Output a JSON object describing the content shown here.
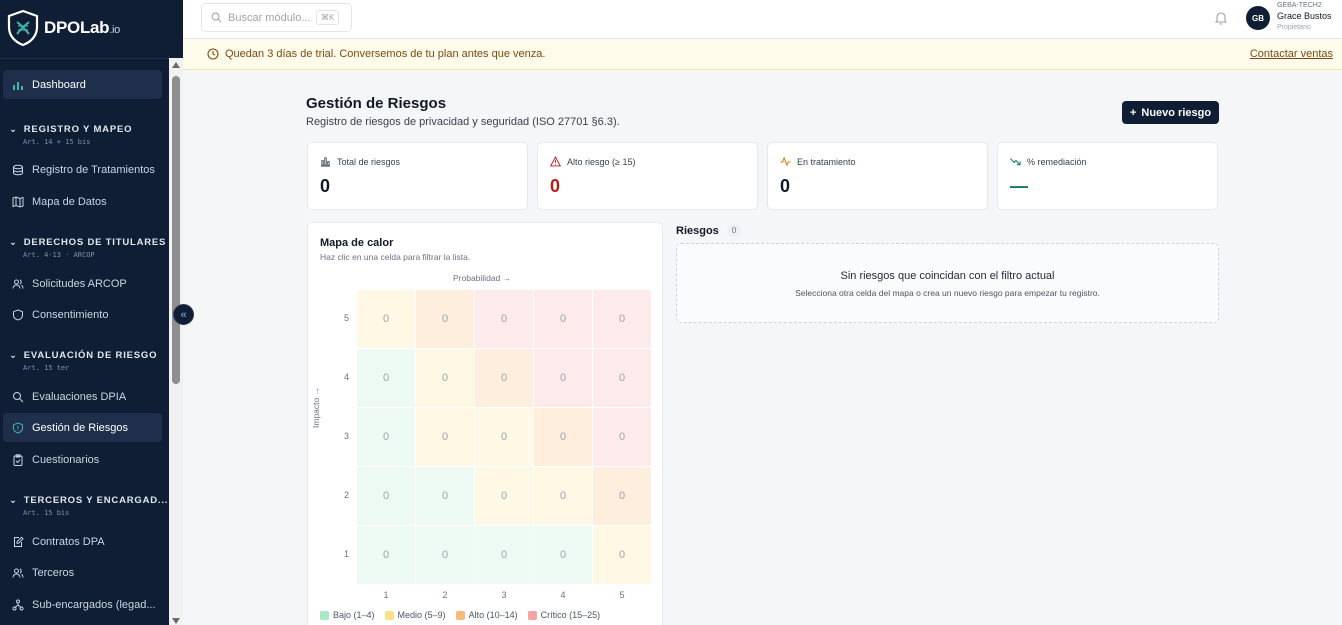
{
  "brand": {
    "name": "DPOLab",
    "suffix": ".io"
  },
  "sidebar": {
    "dashboard": "Dashboard",
    "sections": [
      {
        "title": "REGISTRO Y MAPEO",
        "sub": "Art. 14 + 15 bis",
        "items": [
          "Registro de Tratamientos",
          "Mapa de Datos"
        ]
      },
      {
        "title": "DERECHOS DE TITULARES",
        "sub": "Art. 4-13 · ARCOP",
        "items": [
          "Solicitudes ARCOP",
          "Consentimiento"
        ]
      },
      {
        "title": "EVALUACIÓN DE RIESGO",
        "sub": "Art. 15 ter",
        "items": [
          "Evaluaciones DPIA",
          "Gestión de Riesgos",
          "Cuestionarios"
        ]
      },
      {
        "title": "TERCEROS Y ENCARGAD...",
        "sub": "Art. 15 bis",
        "items": [
          "Contratos DPA",
          "Terceros",
          "Sub-encargados (legad..."
        ]
      }
    ]
  },
  "topbar": {
    "search_placeholder": "Buscar módulo...",
    "search_shortcut": "⌘K",
    "user": {
      "org": "GEBA-TECH2",
      "name": "Grace Bustos",
      "role": "Propietario",
      "initials": "GB"
    }
  },
  "banner": {
    "message": "Quedan 3 días de trial. Conversemos de tu plan antes que venza.",
    "cta": "Contactar ventas"
  },
  "page": {
    "title": "Gestión de Riesgos",
    "subtitle": "Registro de riesgos de privacidad y seguridad (ISO 27701 §6.3).",
    "new_button": "Nuevo riesgo"
  },
  "stats": [
    {
      "label": "Total de riesgos",
      "value": "0",
      "color": "#111827"
    },
    {
      "label": "Alto riesgo (≥ 15)",
      "value": "0",
      "color": "#b91c1c"
    },
    {
      "label": "En tratamiento",
      "value": "0",
      "color": "#111827"
    },
    {
      "label": "% remediación",
      "value": "—",
      "color": "#0f766e"
    }
  ],
  "heatmap": {
    "title": "Mapa de calor",
    "subtitle": "Haz clic en una celda para filtrar la lista.",
    "x_label": "Probabilidad →",
    "y_label": "Impacto →",
    "x_ticks": [
      "1",
      "2",
      "3",
      "4",
      "5"
    ],
    "y_ticks": [
      "5",
      "4",
      "3",
      "2",
      "1"
    ],
    "rows": [
      {
        "impact": "5",
        "cells": [
          {
            "v": "0",
            "l": "med"
          },
          {
            "v": "0",
            "l": "high"
          },
          {
            "v": "0",
            "l": "crit"
          },
          {
            "v": "0",
            "l": "crit"
          },
          {
            "v": "0",
            "l": "crit"
          }
        ]
      },
      {
        "impact": "4",
        "cells": [
          {
            "v": "0",
            "l": "low"
          },
          {
            "v": "0",
            "l": "med"
          },
          {
            "v": "0",
            "l": "high"
          },
          {
            "v": "0",
            "l": "crit"
          },
          {
            "v": "0",
            "l": "crit"
          }
        ]
      },
      {
        "impact": "3",
        "cells": [
          {
            "v": "0",
            "l": "low"
          },
          {
            "v": "0",
            "l": "med"
          },
          {
            "v": "0",
            "l": "med"
          },
          {
            "v": "0",
            "l": "high"
          },
          {
            "v": "0",
            "l": "crit"
          }
        ]
      },
      {
        "impact": "2",
        "cells": [
          {
            "v": "0",
            "l": "low"
          },
          {
            "v": "0",
            "l": "low"
          },
          {
            "v": "0",
            "l": "med"
          },
          {
            "v": "0",
            "l": "med"
          },
          {
            "v": "0",
            "l": "high"
          }
        ]
      },
      {
        "impact": "1",
        "cells": [
          {
            "v": "0",
            "l": "low"
          },
          {
            "v": "0",
            "l": "low"
          },
          {
            "v": "0",
            "l": "low"
          },
          {
            "v": "0",
            "l": "low"
          },
          {
            "v": "0",
            "l": "med"
          }
        ]
      }
    ],
    "legend": [
      {
        "label": "Bajo (1–4)",
        "color": "#a7e9c5"
      },
      {
        "label": "Medio (5–9)",
        "color": "#fbe08a"
      },
      {
        "label": "Alto (10–14)",
        "color": "#f7b97c"
      },
      {
        "label": "Crítico (15–25)",
        "color": "#f4a3a3"
      }
    ]
  },
  "risks": {
    "title": "Riesgos",
    "count": "0",
    "empty_title": "Sin riesgos que coincidan con el filtro actual",
    "empty_sub": "Selecciona otra celda del mapa o crea un nuevo riesgo para empezar tu registro."
  }
}
